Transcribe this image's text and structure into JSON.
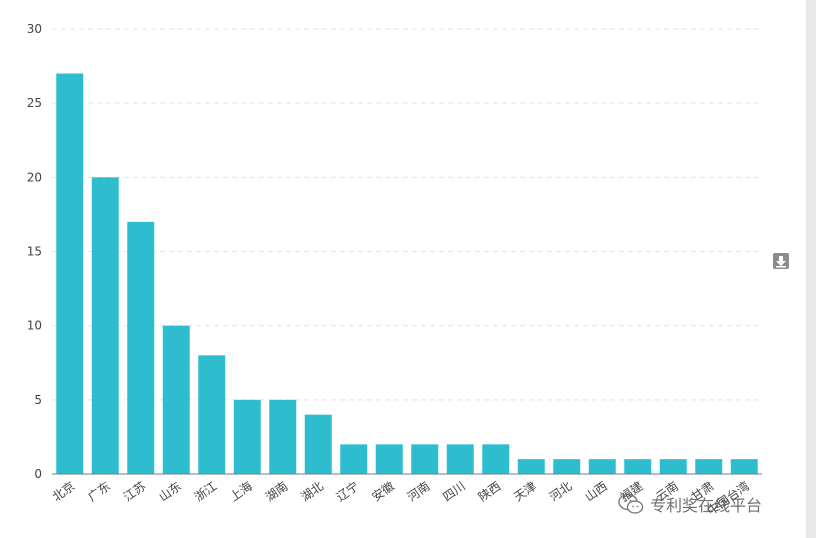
{
  "chart_data": {
    "type": "bar",
    "title": "",
    "xlabel": "",
    "ylabel": "",
    "ylim": [
      0,
      30
    ],
    "yticks": [
      0,
      5,
      10,
      15,
      20,
      25,
      30
    ],
    "grid": "horizontal-dashed",
    "bar_color": "#2dbdcf",
    "categories": [
      "北京",
      "广东",
      "江苏",
      "山东",
      "浙江",
      "上海",
      "湖南",
      "湖北",
      "辽宁",
      "安徽",
      "河南",
      "四川",
      "陕西",
      "天津",
      "河北",
      "山西",
      "福建",
      "云南",
      "甘肃",
      "中国台湾"
    ],
    "values": [
      27,
      20,
      17,
      10,
      8,
      5,
      5,
      4,
      2,
      2,
      2,
      2,
      2,
      1,
      1,
      1,
      1,
      1,
      1,
      1
    ]
  },
  "toolbar": {
    "download_icon": "download-icon"
  },
  "watermark": {
    "text": "专利奖在线平台",
    "icon": "wechat-icon"
  }
}
